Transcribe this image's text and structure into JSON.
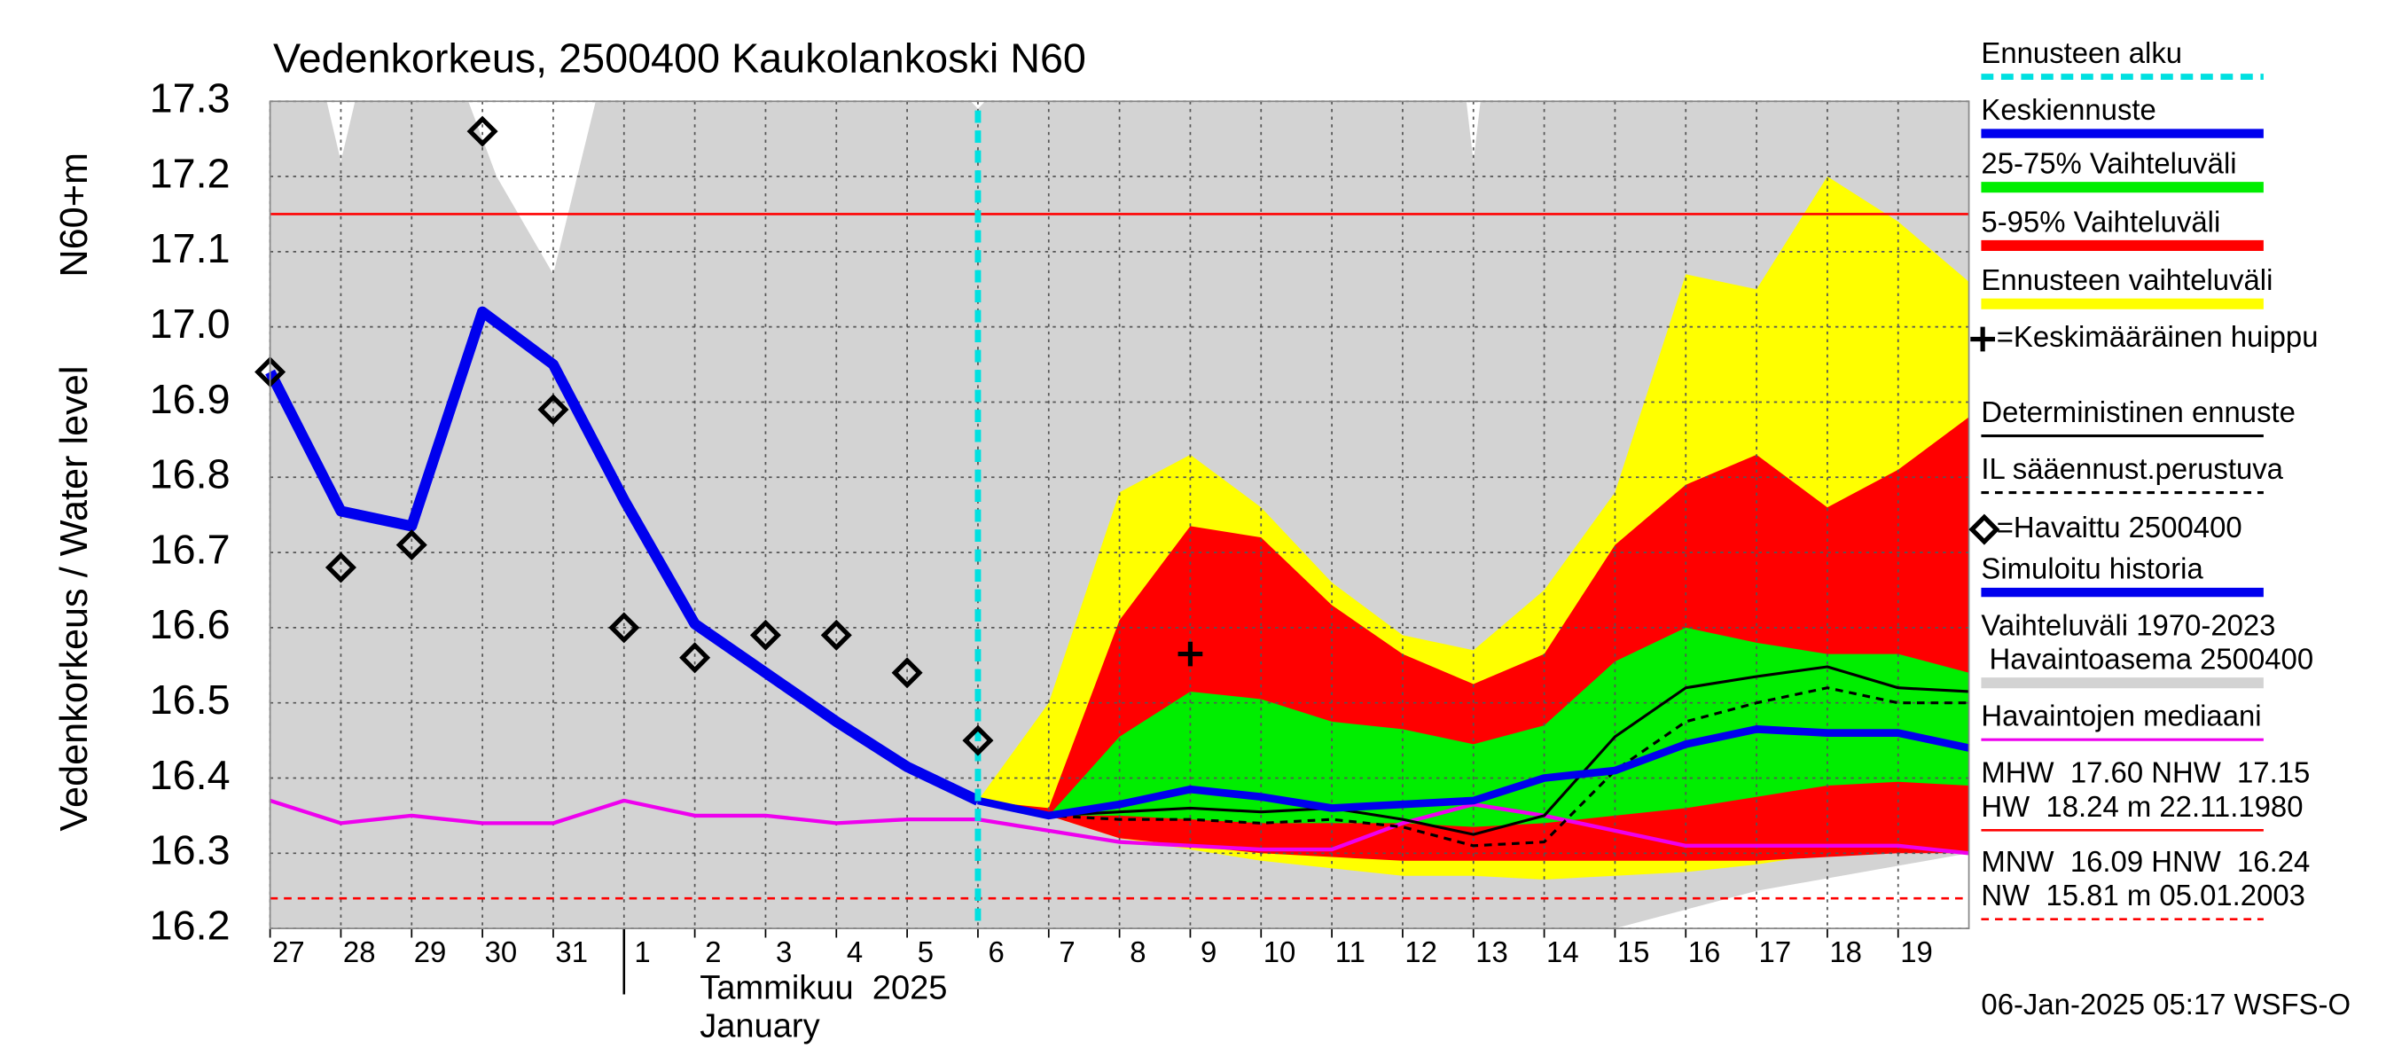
{
  "chart_data": {
    "type": "forecast-band",
    "title": "Vedenkorkeus, 2500400 Kaukolankoski N60",
    "y_label": "Vedenkorkeus / Water level",
    "y_unit_label": "N60+m",
    "x_label": "Tammikuu  2025",
    "x_label_en": "January",
    "footer": "06-Jan-2025 05:17 WSFS-O",
    "xlim": [
      0,
      24
    ],
    "ylim": [
      16.2,
      17.3
    ],
    "yticks": [
      16.2,
      16.3,
      16.4,
      16.5,
      16.6,
      16.7,
      16.8,
      16.9,
      {
        "value": 17,
        "label": "17.0"
      },
      17.1,
      17.2,
      17.3
    ],
    "xticks": [
      {
        "value": 0,
        "label": "27"
      },
      {
        "value": 1,
        "label": "28"
      },
      {
        "value": 2,
        "label": "29"
      },
      {
        "value": 3,
        "label": "30"
      },
      {
        "value": 4,
        "label": "31"
      },
      {
        "value": 5,
        "label": "1"
      },
      {
        "value": 6,
        "label": "2"
      },
      {
        "value": 7,
        "label": "3"
      },
      {
        "value": 8,
        "label": "4"
      },
      {
        "value": 9,
        "label": "5"
      },
      {
        "value": 10,
        "label": "6"
      },
      {
        "value": 11,
        "label": "7"
      },
      {
        "value": 12,
        "label": "8"
      },
      {
        "value": 13,
        "label": "9"
      },
      {
        "value": 14,
        "label": "10"
      },
      {
        "value": 15,
        "label": "11"
      },
      {
        "value": 16,
        "label": "12"
      },
      {
        "value": 17,
        "label": "13"
      },
      {
        "value": 18,
        "label": "14"
      },
      {
        "value": 19,
        "label": "15"
      },
      {
        "value": 20,
        "label": "16"
      },
      {
        "value": 21,
        "label": "17"
      },
      {
        "value": 22,
        "label": "18"
      },
      {
        "value": 23,
        "label": "19"
      }
    ],
    "month_start": 5,
    "grid": true,
    "series": [
      {
        "name": "Ennusteen alku",
        "kind": "vline",
        "color": "#00e0e0",
        "x": 10
      },
      {
        "name": "Keskiennuste",
        "kind": "line",
        "color": "#0000ee",
        "x": [
          10,
          11,
          12,
          13,
          14,
          15,
          16,
          17,
          18,
          19,
          20,
          21,
          22,
          23,
          24
        ],
        "values": [
          16.37,
          16.35,
          16.365,
          16.385,
          16.375,
          16.36,
          16.365,
          16.37,
          16.4,
          16.41,
          16.445,
          16.465,
          16.46,
          16.46,
          16.44
        ]
      },
      {
        "name": "25-75% Vaihteluväli",
        "kind": "band",
        "color": "#00ee00",
        "x": [
          10,
          11,
          12,
          13,
          14,
          15,
          16,
          17,
          18,
          19,
          20,
          21,
          22,
          23,
          24
        ],
        "upper": [
          16.37,
          16.35,
          16.455,
          16.515,
          16.505,
          16.475,
          16.465,
          16.445,
          16.47,
          16.555,
          16.6,
          16.58,
          16.565,
          16.565,
          16.54
        ],
        "lower": [
          16.37,
          16.35,
          16.35,
          16.345,
          16.34,
          16.34,
          16.34,
          16.335,
          16.34,
          16.35,
          16.36,
          16.375,
          16.39,
          16.395,
          16.39
        ]
      },
      {
        "name": "5-95% Vaihteluväli",
        "kind": "band",
        "color": "#ff0000",
        "x": [
          10,
          11,
          12,
          13,
          14,
          15,
          16,
          17,
          18,
          19,
          20,
          21,
          22,
          23,
          24
        ],
        "upper": [
          16.37,
          16.36,
          16.61,
          16.735,
          16.72,
          16.63,
          16.565,
          16.525,
          16.565,
          16.71,
          16.79,
          16.83,
          16.76,
          16.81,
          16.88
        ],
        "lower": [
          16.37,
          16.35,
          16.32,
          16.31,
          16.3,
          16.295,
          16.29,
          16.29,
          16.29,
          16.29,
          16.29,
          16.29,
          16.295,
          16.3,
          16.3
        ]
      },
      {
        "name": "Ennusteen vaihteluväli",
        "kind": "band",
        "color": "#ffff00",
        "x": [
          10,
          11,
          12,
          13,
          14,
          15,
          16,
          17,
          18,
          19,
          20,
          21,
          22,
          23,
          24
        ],
        "upper": [
          16.37,
          16.5,
          16.78,
          16.83,
          16.76,
          16.66,
          16.59,
          16.57,
          16.65,
          16.78,
          17.07,
          17.05,
          17.2,
          17.14,
          17.06
        ],
        "lower": [
          16.37,
          16.35,
          16.32,
          16.305,
          16.29,
          16.28,
          16.27,
          16.27,
          16.265,
          16.27,
          16.275,
          16.285,
          16.3,
          16.31,
          16.32
        ]
      },
      {
        "name": "=Keskimääräinen huippu",
        "kind": "cross",
        "color": "#000000",
        "x": [
          13
        ],
        "values": [
          16.565
        ]
      },
      {
        "name": "Deterministinen ennuste",
        "kind": "line",
        "color": "#000000",
        "x": [
          10,
          11,
          12,
          13,
          14,
          15,
          16,
          17,
          18,
          19,
          20,
          21,
          22,
          23,
          24
        ],
        "values": [
          16.37,
          16.35,
          16.355,
          16.36,
          16.355,
          16.36,
          16.345,
          16.325,
          16.35,
          16.455,
          16.52,
          16.535,
          16.548,
          16.52,
          16.515
        ]
      },
      {
        "name": "IL sääennust.perustuva",
        "kind": "line",
        "dashed": true,
        "color": "#000000",
        "x": [
          10,
          11,
          12,
          13,
          14,
          15,
          16,
          17,
          18,
          19,
          20,
          21,
          22,
          23,
          24
        ],
        "values": [
          16.37,
          16.35,
          16.345,
          16.345,
          16.34,
          16.345,
          16.335,
          16.31,
          16.315,
          16.41,
          16.475,
          16.5,
          16.52,
          16.5,
          16.5
        ]
      },
      {
        "name": "=Havaittu 2500400",
        "kind": "diamond",
        "color": "#000000",
        "x": [
          0,
          1,
          2,
          3,
          4,
          5,
          6,
          7,
          8,
          9,
          10
        ],
        "values": [
          16.94,
          16.68,
          16.71,
          17.26,
          16.89,
          16.6,
          16.56,
          16.59,
          16.59,
          16.54,
          16.45
        ]
      },
      {
        "name": "Simuloitu historia",
        "kind": "line",
        "color": "#0000ee",
        "x": [
          0,
          1,
          2,
          3,
          4,
          5,
          6,
          7,
          8,
          9,
          10
        ],
        "values": [
          16.94,
          16.755,
          16.735,
          17.02,
          16.95,
          16.77,
          16.605,
          16.54,
          16.475,
          16.415,
          16.37
        ]
      },
      {
        "name": [
          "Vaihteluväli 1970-2023",
          " Havaintoasema 2500400"
        ],
        "kind": "band",
        "color": "#d3d3d3",
        "x": [
          0,
          0.8,
          1,
          1.2,
          2.8,
          3.2,
          4,
          4.6,
          9.9,
          10,
          10.1,
          16.9,
          17,
          17.1,
          19,
          21,
          24
        ],
        "upper": [
          17.3,
          17.3,
          17.22,
          17.3,
          17.3,
          17.2,
          17.07,
          17.3,
          17.3,
          17.29,
          17.3,
          17.3,
          17.22,
          17.3,
          17.3,
          17.3,
          17.3
        ],
        "lower": [
          16.2,
          16.2,
          16.2,
          16.2,
          16.2,
          16.2,
          16.2,
          16.2,
          16.2,
          16.2,
          16.2,
          16.2,
          16.2,
          16.2,
          16.2,
          16.25,
          16.3
        ]
      },
      {
        "name": "Havaintojen mediaani",
        "kind": "line",
        "color": "#ee00ee",
        "x": [
          0,
          1,
          2,
          3,
          4,
          5,
          6,
          7,
          8,
          9,
          10,
          11,
          12,
          13,
          14,
          15,
          16,
          17,
          18,
          19,
          20,
          21,
          22,
          23,
          24
        ],
        "values": [
          16.37,
          16.34,
          16.35,
          16.34,
          16.34,
          16.37,
          16.35,
          16.35,
          16.34,
          16.345,
          16.345,
          16.33,
          16.315,
          16.31,
          16.305,
          16.305,
          16.34,
          16.365,
          16.35,
          16.33,
          16.31,
          16.31,
          16.31,
          16.31,
          16.3
        ]
      },
      {
        "name": [
          "MHW  17.60 NHW  17.15",
          "HW  18.24 m 22.11.1980"
        ],
        "kind": "hline",
        "color": "#ff0000",
        "value": 17.15
      },
      {
        "name": [
          "MNW  16.09 HNW  16.24",
          "NW  15.81 m 05.01.2003"
        ],
        "kind": "hline",
        "dashed": true,
        "color": "#ff0000",
        "value": 16.24
      }
    ]
  }
}
